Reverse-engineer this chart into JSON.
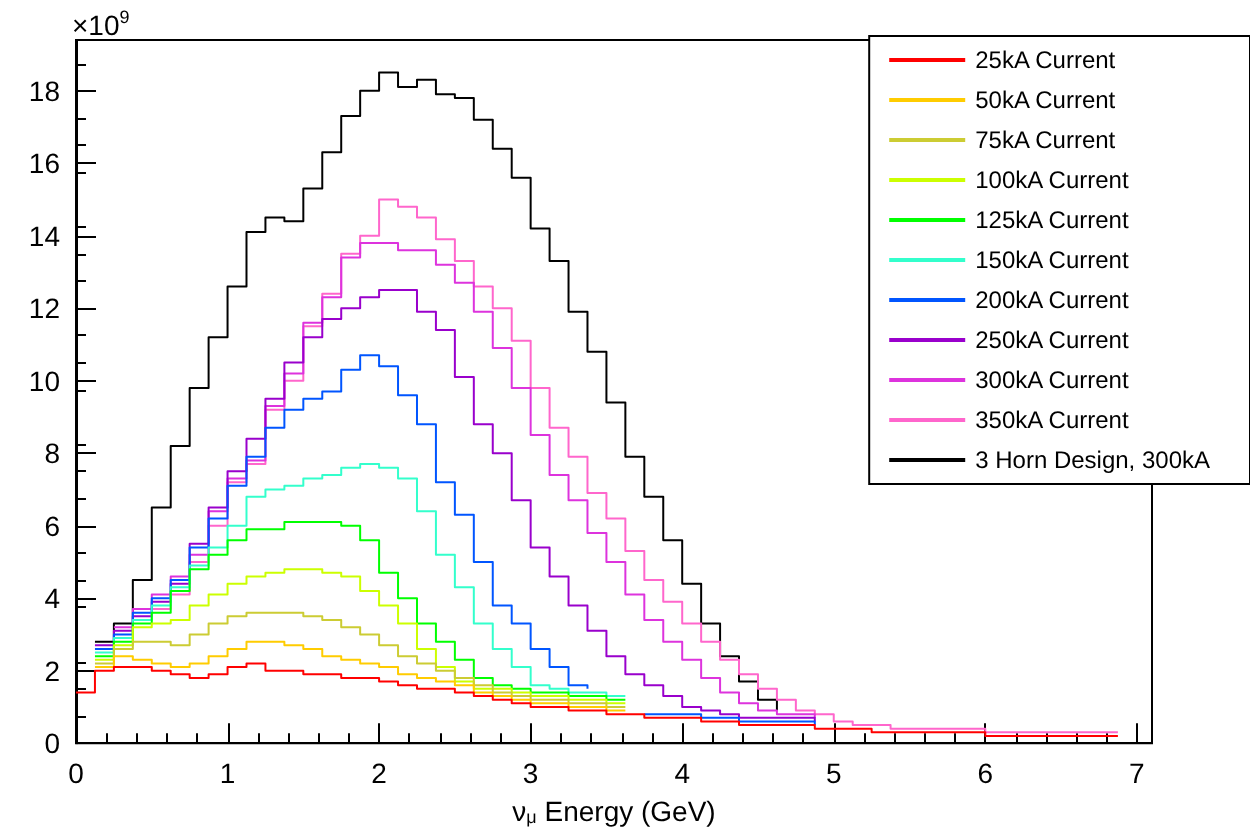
{
  "chart_data": {
    "type": "step",
    "xlabel": "ν$_{μ}$ Energy (GeV)",
    "annotations": [
      "×10$^{9}$"
    ],
    "x": [
      0,
      0.125,
      0.25,
      0.375,
      0.5,
      0.625,
      0.75,
      0.875,
      1,
      1.125,
      1.25,
      1.375,
      1.5,
      1.625,
      1.75,
      1.875,
      2,
      2.125,
      2.25,
      2.375,
      2.5,
      2.625,
      2.75,
      2.875,
      3,
      3.125,
      3.25,
      3.375,
      3.5,
      3.625,
      3.75,
      3.875,
      4,
      4.125,
      4.25,
      4.375,
      4.5,
      4.625,
      4.75,
      4.875,
      5,
      5.125,
      5.25,
      5.375,
      5.5,
      5.625,
      5.75,
      5.875,
      6,
      6.125,
      6.25,
      6.375,
      6.5,
      6.625,
      6.75,
      6.875
    ],
    "xlim": [
      0,
      7.1
    ],
    "xticks": [
      0,
      1,
      2,
      3,
      4,
      5,
      6,
      7
    ],
    "ylim": [
      0,
      19.4
    ],
    "yticks": [
      0,
      2,
      4,
      6,
      8,
      10,
      12,
      14,
      16,
      18
    ],
    "grid": false,
    "legend": "top right",
    "marker": "none",
    "line_style": "solid",
    "series": [
      {
        "name": "25kA Current",
        "color": "#ff0000",
        "values": [
          1.4,
          2.0,
          2.1,
          2.1,
          2.0,
          1.9,
          1.8,
          1.9,
          2.1,
          2.2,
          2.0,
          2.0,
          1.9,
          1.9,
          1.8,
          1.8,
          1.7,
          1.6,
          1.5,
          1.5,
          1.4,
          1.3,
          1.2,
          1.1,
          1.0,
          1.0,
          0.9,
          0.9,
          0.8,
          0.8,
          0.7,
          0.7,
          0.7,
          0.6,
          0.6,
          0.5,
          0.5,
          0.5,
          0.5,
          0.4,
          0.4,
          0.4,
          0.3,
          0.3,
          0.3,
          0.3,
          0.3,
          0.3,
          0.2,
          0.2,
          0.2,
          0.2,
          0.2,
          0.2,
          0.2,
          0.2
        ]
      },
      {
        "name": "50kA Current",
        "color": "#ffcc00",
        "values": [
          null,
          2.1,
          2.4,
          2.3,
          2.2,
          2.1,
          2.2,
          2.4,
          2.6,
          2.8,
          2.8,
          2.7,
          2.6,
          2.4,
          2.3,
          2.2,
          2.1,
          1.9,
          1.8,
          1.7,
          1.6,
          1.4,
          1.3,
          1.2,
          1.1,
          1.1,
          1.0,
          1.0,
          0.9,
          0.9,
          null,
          null,
          null,
          null,
          null,
          null,
          null,
          null,
          null,
          null,
          null,
          null,
          null,
          null,
          null,
          null,
          null,
          null,
          null,
          null,
          null,
          null,
          null,
          null,
          null,
          null
        ]
      },
      {
        "name": "75kA Current",
        "color": "#cccc33",
        "values": [
          null,
          2.2,
          2.6,
          2.8,
          2.8,
          2.7,
          3.0,
          3.3,
          3.5,
          3.6,
          3.6,
          3.6,
          3.5,
          3.4,
          3.2,
          3.0,
          2.7,
          2.4,
          2.2,
          2.0,
          1.8,
          1.6,
          1.4,
          1.3,
          1.2,
          1.2,
          1.1,
          1.1,
          1.0,
          1.0,
          null,
          null,
          null,
          null,
          null,
          null,
          null,
          null,
          null,
          null,
          null,
          null,
          null,
          null,
          null,
          null,
          null,
          null,
          null,
          null,
          null,
          null,
          null,
          null,
          null,
          null
        ]
      },
      {
        "name": "100kA Current",
        "color": "#ccff00",
        "values": [
          null,
          2.3,
          2.7,
          3.2,
          3.3,
          3.4,
          3.8,
          4.1,
          4.4,
          4.6,
          4.7,
          4.8,
          4.8,
          4.7,
          4.6,
          4.2,
          3.8,
          3.3,
          2.6,
          2.1,
          1.7,
          1.5,
          1.5,
          1.4,
          1.3,
          1.3,
          1.2,
          1.2,
          1.1,
          1.1,
          null,
          null,
          null,
          null,
          null,
          null,
          null,
          null,
          null,
          null,
          null,
          null,
          null,
          null,
          null,
          null,
          null,
          null,
          null,
          null,
          null,
          null,
          null,
          null,
          null,
          null
        ]
      },
      {
        "name": "125kA Current",
        "color": "#00ff00",
        "values": [
          null,
          2.4,
          2.8,
          3.3,
          3.6,
          4.2,
          4.8,
          5.2,
          5.6,
          5.9,
          5.9,
          6.1,
          6.1,
          6.1,
          6.0,
          5.6,
          4.7,
          4.0,
          3.3,
          2.8,
          2.3,
          1.8,
          1.6,
          1.5,
          1.4,
          1.4,
          1.3,
          1.3,
          1.2,
          1.2,
          null,
          null,
          null,
          null,
          null,
          null,
          null,
          null,
          null,
          null,
          null,
          null,
          null,
          null,
          null,
          null,
          null,
          null,
          null,
          null,
          null,
          null,
          null,
          null,
          null,
          null
        ]
      },
      {
        "name": "150kA Current",
        "color": "#33ffcc",
        "values": [
          null,
          2.5,
          2.9,
          3.4,
          3.8,
          4.3,
          4.9,
          5.4,
          6.0,
          6.8,
          7.0,
          7.1,
          7.3,
          7.4,
          7.6,
          7.7,
          7.6,
          7.3,
          6.4,
          5.2,
          4.3,
          3.3,
          2.6,
          2.1,
          1.6,
          1.5,
          1.4,
          1.4,
          1.3,
          1.3,
          null,
          null,
          null,
          null,
          null,
          null,
          null,
          null,
          null,
          null,
          null,
          null,
          null,
          null,
          null,
          null,
          null,
          null,
          null,
          null,
          null,
          null,
          null,
          null,
          null,
          null
        ]
      },
      {
        "name": "200kA Current",
        "color": "#0055ff",
        "values": [
          null,
          2.6,
          3.0,
          3.6,
          4.0,
          4.5,
          5.4,
          6.2,
          7.1,
          7.9,
          8.7,
          9.2,
          9.5,
          9.7,
          10.3,
          10.7,
          10.4,
          9.6,
          8.8,
          7.2,
          6.3,
          5.0,
          3.8,
          3.3,
          2.6,
          2.1,
          1.6,
          1.5,
          null,
          null,
          0.8,
          0.8,
          0.8,
          0.7,
          0.7,
          0.6,
          0.6,
          0.6,
          0.6,
          0.5,
          null,
          null,
          null,
          null,
          null,
          null,
          null,
          null,
          null,
          null,
          null,
          null,
          null,
          null,
          null,
          null
        ]
      },
      {
        "name": "250kA Current",
        "color": "#9900cc",
        "values": [
          null,
          2.7,
          3.1,
          3.5,
          3.9,
          4.4,
          5.5,
          6.5,
          7.5,
          8.4,
          9.5,
          10.5,
          11.2,
          11.7,
          12.0,
          12.3,
          12.5,
          12.5,
          11.9,
          11.4,
          10.1,
          8.8,
          8.0,
          6.7,
          5.4,
          4.6,
          3.8,
          3.1,
          2.4,
          1.9,
          1.6,
          1.3,
          1.0,
          0.9,
          0.8,
          0.7,
          0.7,
          0.7,
          0.7,
          0.6,
          null,
          null,
          null,
          null,
          null,
          null,
          null,
          null,
          null,
          null,
          null,
          null,
          null,
          null,
          null,
          null
        ]
      },
      {
        "name": "300kA Current",
        "color": "#dd33dd",
        "values": [
          null,
          null,
          3.2,
          3.7,
          4.1,
          4.6,
          5.2,
          6.4,
          7.3,
          7.8,
          9.3,
          10.2,
          11.6,
          12.3,
          13.4,
          13.8,
          13.8,
          13.6,
          13.6,
          13.2,
          12.7,
          11.9,
          10.9,
          9.8,
          8.5,
          7.4,
          6.7,
          5.8,
          5.0,
          4.1,
          3.4,
          2.8,
          2.3,
          1.8,
          1.4,
          1.1,
          0.9,
          0.8,
          0.8,
          0.7,
          null,
          null,
          null,
          null,
          null,
          null,
          null,
          null,
          null,
          null,
          null,
          null,
          null,
          null,
          null,
          null
        ]
      },
      {
        "name": "350kA Current",
        "color": "#ff66cc",
        "values": [
          null,
          null,
          null,
          null,
          3.7,
          4.1,
          5.0,
          6.0,
          7.2,
          7.7,
          9.2,
          10.0,
          11.5,
          12.4,
          13.5,
          14.0,
          15.0,
          14.8,
          14.5,
          13.9,
          13.3,
          12.6,
          12.0,
          11.1,
          9.8,
          8.7,
          7.9,
          6.9,
          6.2,
          5.3,
          4.5,
          3.9,
          3.3,
          2.8,
          2.3,
          1.9,
          1.5,
          1.2,
          0.9,
          0.8,
          0.6,
          0.5,
          0.5,
          0.4,
          0.4,
          0.4,
          0.4,
          0.4,
          0.3,
          0.3,
          0.3,
          0.3,
          0.3,
          0.3,
          0.3,
          0.3
        ]
      },
      {
        "name": "3 Horn Design, 300kA",
        "color": "#000000",
        "values": [
          null,
          2.8,
          3.3,
          4.5,
          6.5,
          8.2,
          9.8,
          11.2,
          12.6,
          14.1,
          14.5,
          14.4,
          15.3,
          16.3,
          17.3,
          18.0,
          18.5,
          18.1,
          18.3,
          17.9,
          17.8,
          17.2,
          16.4,
          15.6,
          14.2,
          13.3,
          11.9,
          10.8,
          9.4,
          7.9,
          6.8,
          5.6,
          4.4,
          3.3,
          2.4,
          1.7,
          1.2,
          0.9,
          null,
          null,
          null,
          null,
          null,
          null,
          null,
          null,
          null,
          null,
          null,
          null,
          null,
          null,
          null,
          null,
          null,
          null
        ]
      }
    ]
  }
}
